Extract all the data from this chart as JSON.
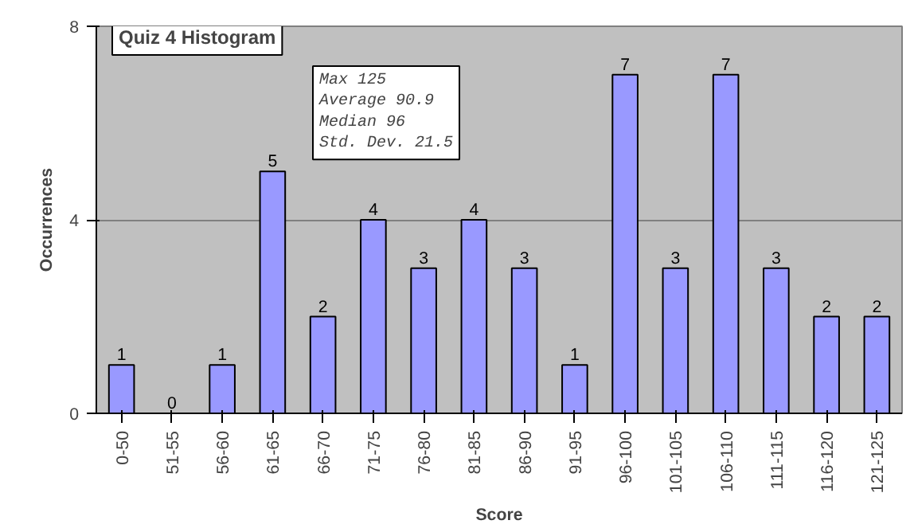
{
  "chart_data": {
    "type": "bar",
    "title": "Quiz 4 Histogram",
    "xlabel": "Score",
    "ylabel": "Occurrences",
    "categories": [
      "0-50",
      "51-55",
      "56-60",
      "61-65",
      "66-70",
      "71-75",
      "76-80",
      "81-85",
      "86-90",
      "91-95",
      "96-100",
      "101-105",
      "106-110",
      "111-115",
      "116-120",
      "121-125"
    ],
    "values": [
      1,
      0,
      1,
      5,
      2,
      4,
      3,
      4,
      3,
      1,
      7,
      3,
      7,
      3,
      2,
      2
    ],
    "color": "#9999ff",
    "ylim": [
      0,
      8
    ],
    "yticks": [
      0,
      4,
      8
    ],
    "grid": "y",
    "data_labels": true,
    "annotations": [
      "Max 125",
      "Average 90.9",
      "Median 96",
      "Std. Dev. 21.5"
    ]
  }
}
